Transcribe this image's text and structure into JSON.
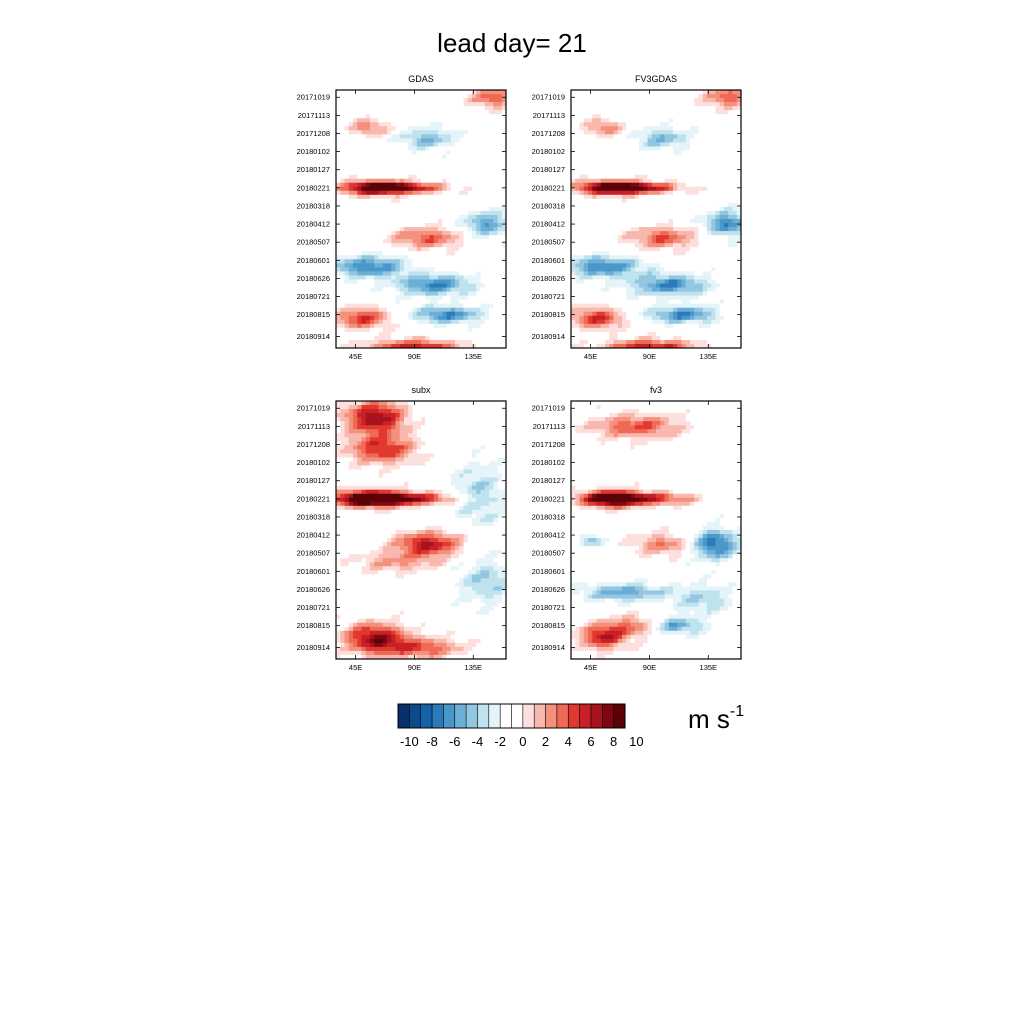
{
  "figure": {
    "title": "lead day= 21"
  },
  "colorbar": {
    "colors": [
      "#08306b",
      "#0c4a8a",
      "#1661a6",
      "#2b7bba",
      "#4a98c9",
      "#6bafd6",
      "#93c6e0",
      "#bfe3ee",
      "#e4f4f8",
      "#ffffff",
      "#ffffff",
      "#fde0dd",
      "#f9b8ad",
      "#f4917d",
      "#ef6a55",
      "#e1392f",
      "#c92027",
      "#a8121d",
      "#7f0712",
      "#5a0208"
    ],
    "tick_labels": [
      "-10",
      "-8",
      "-6",
      "-4",
      "-2",
      "0",
      "2",
      "4",
      "6",
      "8",
      "10"
    ],
    "unit_base": "m s",
    "unit_exponent": "-1"
  },
  "chart_data": [
    {
      "type": "heatmap",
      "title": "GDAS",
      "xticks": [
        "45E",
        "90E",
        "135E"
      ],
      "yticks": [
        "20171019",
        "20171113",
        "20171208",
        "20180102",
        "20180127",
        "20180221",
        "20180318",
        "20180412",
        "20180507",
        "20180601",
        "20180626",
        "20180721",
        "20180815",
        "20180914"
      ],
      "features": [
        {
          "x": 150,
          "y": 20171019,
          "amp": 5,
          "sx": 12,
          "sy": 10
        },
        {
          "x": 55,
          "y": 20171130,
          "amp": 4,
          "sx": 10,
          "sy": 8
        },
        {
          "x": 100,
          "y": 20171215,
          "amp": -4,
          "sx": 14,
          "sy": 10
        },
        {
          "x": 60,
          "y": 20180221,
          "amp": 9,
          "sx": 18,
          "sy": 7
        },
        {
          "x": 85,
          "y": 20180221,
          "amp": 6,
          "sx": 22,
          "sy": 5
        },
        {
          "x": 100,
          "y": 20180501,
          "amp": 5,
          "sx": 18,
          "sy": 10
        },
        {
          "x": 145,
          "y": 20180412,
          "amp": -5,
          "sx": 12,
          "sy": 12
        },
        {
          "x": 55,
          "y": 20180610,
          "amp": -6,
          "sx": 20,
          "sy": 10
        },
        {
          "x": 105,
          "y": 20180705,
          "amp": -6,
          "sx": 20,
          "sy": 10
        },
        {
          "x": 115,
          "y": 20180815,
          "amp": -6,
          "sx": 18,
          "sy": 8
        },
        {
          "x": 50,
          "y": 20180820,
          "amp": 6,
          "sx": 14,
          "sy": 10
        },
        {
          "x": 90,
          "y": 20180930,
          "amp": 7,
          "sx": 24,
          "sy": 8
        }
      ]
    },
    {
      "type": "heatmap",
      "title": "FV3GDAS",
      "xticks": [
        "45E",
        "90E",
        "135E"
      ],
      "yticks": [
        "20171019",
        "20171113",
        "20171208",
        "20180102",
        "20180127",
        "20180221",
        "20180318",
        "20180412",
        "20180507",
        "20180601",
        "20180626",
        "20180721",
        "20180815",
        "20180914"
      ],
      "features": [
        {
          "x": 150,
          "y": 20171019,
          "amp": 5,
          "sx": 12,
          "sy": 10
        },
        {
          "x": 55,
          "y": 20171130,
          "amp": 4,
          "sx": 10,
          "sy": 8
        },
        {
          "x": 100,
          "y": 20171215,
          "amp": -4,
          "sx": 14,
          "sy": 10
        },
        {
          "x": 60,
          "y": 20180221,
          "amp": 9,
          "sx": 18,
          "sy": 7
        },
        {
          "x": 85,
          "y": 20180221,
          "amp": 6,
          "sx": 22,
          "sy": 5
        },
        {
          "x": 100,
          "y": 20180501,
          "amp": 5,
          "sx": 18,
          "sy": 10
        },
        {
          "x": 150,
          "y": 20180412,
          "amp": -6,
          "sx": 12,
          "sy": 12
        },
        {
          "x": 55,
          "y": 20180610,
          "amp": -6,
          "sx": 20,
          "sy": 10
        },
        {
          "x": 105,
          "y": 20180705,
          "amp": -6,
          "sx": 20,
          "sy": 10
        },
        {
          "x": 115,
          "y": 20180815,
          "amp": -6,
          "sx": 18,
          "sy": 8
        },
        {
          "x": 50,
          "y": 20180820,
          "amp": 6,
          "sx": 14,
          "sy": 10
        },
        {
          "x": 90,
          "y": 20180930,
          "amp": 7,
          "sx": 24,
          "sy": 8
        }
      ]
    },
    {
      "type": "heatmap",
      "title": "subx",
      "xticks": [
        "45E",
        "90E",
        "135E"
      ],
      "yticks": [
        "20171019",
        "20171113",
        "20171208",
        "20180102",
        "20180127",
        "20180221",
        "20180318",
        "20180412",
        "20180507",
        "20180601",
        "20180626",
        "20180721",
        "20180815",
        "20180914"
      ],
      "features": [
        {
          "x": 60,
          "y": 20171101,
          "amp": 8,
          "sx": 16,
          "sy": 16
        },
        {
          "x": 65,
          "y": 20171215,
          "amp": 6,
          "sx": 18,
          "sy": 14
        },
        {
          "x": 55,
          "y": 20180221,
          "amp": 11,
          "sx": 18,
          "sy": 8
        },
        {
          "x": 85,
          "y": 20180221,
          "amp": 7,
          "sx": 26,
          "sy": 6
        },
        {
          "x": 100,
          "y": 20180425,
          "amp": 7,
          "sx": 18,
          "sy": 12
        },
        {
          "x": 75,
          "y": 20180520,
          "amp": 3,
          "sx": 22,
          "sy": 10
        },
        {
          "x": 140,
          "y": 20180215,
          "amp": -3,
          "sx": 14,
          "sy": 30
        },
        {
          "x": 145,
          "y": 20180615,
          "amp": -3,
          "sx": 16,
          "sy": 22
        },
        {
          "x": 60,
          "y": 20180901,
          "amp": 8,
          "sx": 16,
          "sy": 14
        },
        {
          "x": 95,
          "y": 20180915,
          "amp": 5,
          "sx": 22,
          "sy": 10
        }
      ]
    },
    {
      "type": "heatmap",
      "title": "fv3",
      "xticks": [
        "45E",
        "90E",
        "135E"
      ],
      "yticks": [
        "20171019",
        "20171113",
        "20171208",
        "20180102",
        "20180127",
        "20180221",
        "20180318",
        "20180412",
        "20180507",
        "20180601",
        "20180626",
        "20180721",
        "20180815",
        "20180914"
      ],
      "features": [
        {
          "x": 80,
          "y": 20171113,
          "amp": 5,
          "sx": 24,
          "sy": 12
        },
        {
          "x": 60,
          "y": 20180221,
          "amp": 10,
          "sx": 16,
          "sy": 8
        },
        {
          "x": 90,
          "y": 20180221,
          "amp": 6,
          "sx": 24,
          "sy": 6
        },
        {
          "x": 140,
          "y": 20180425,
          "amp": -7,
          "sx": 12,
          "sy": 14
        },
        {
          "x": 45,
          "y": 20180420,
          "amp": -4,
          "sx": 6,
          "sy": 6
        },
        {
          "x": 100,
          "y": 20180425,
          "amp": 4,
          "sx": 16,
          "sy": 10
        },
        {
          "x": 70,
          "y": 20180630,
          "amp": -5,
          "sx": 22,
          "sy": 8
        },
        {
          "x": 130,
          "y": 20180710,
          "amp": -3,
          "sx": 16,
          "sy": 14
        },
        {
          "x": 110,
          "y": 20180815,
          "amp": -5,
          "sx": 14,
          "sy": 8
        },
        {
          "x": 55,
          "y": 20180830,
          "amp": 7,
          "sx": 12,
          "sy": 12
        },
        {
          "x": 80,
          "y": 20180815,
          "amp": 4,
          "sx": 14,
          "sy": 10
        }
      ]
    }
  ]
}
